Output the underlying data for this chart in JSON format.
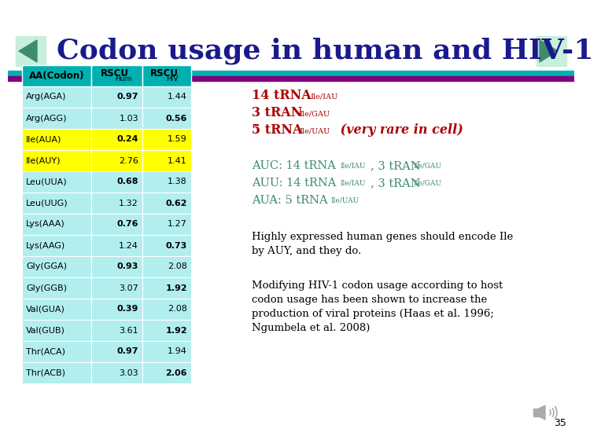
{
  "title": "Codon usage in human and HIV-1",
  "title_color": "#1a1a8c",
  "bg_color": "#ffffff",
  "header_bg": "#00b0b0",
  "row_bg_default": "#b2eeee",
  "row_bg_highlight": "#ffff00",
  "rows": [
    {
      "label": "Arg(AGA)",
      "hum": "0.97",
      "hiv": "1.44",
      "highlight": false,
      "hum_bold": true,
      "hiv_bold": false
    },
    {
      "label": "Arg(AGG)",
      "hum": "1.03",
      "hiv": "0.56",
      "highlight": false,
      "hum_bold": false,
      "hiv_bold": true
    },
    {
      "label": "Ile(AUA)",
      "hum": "0.24",
      "hiv": "1.59",
      "highlight": true,
      "hum_bold": true,
      "hiv_bold": false
    },
    {
      "label": "Ile(AUY)",
      "hum": "2.76",
      "hiv": "1.41",
      "highlight": true,
      "hum_bold": false,
      "hiv_bold": false
    },
    {
      "label": "Leu(UUA)",
      "hum": "0.68",
      "hiv": "1.38",
      "highlight": false,
      "hum_bold": true,
      "hiv_bold": false
    },
    {
      "label": "Leu(UUG)",
      "hum": "1.32",
      "hiv": "0.62",
      "highlight": false,
      "hum_bold": false,
      "hiv_bold": true
    },
    {
      "label": "Lys(AAA)",
      "hum": "0.76",
      "hiv": "1.27",
      "highlight": false,
      "hum_bold": true,
      "hiv_bold": false
    },
    {
      "label": "Lys(AAG)",
      "hum": "1.24",
      "hiv": "0.73",
      "highlight": false,
      "hum_bold": false,
      "hiv_bold": true
    },
    {
      "label": "Gly(GGA)",
      "hum": "0.93",
      "hiv": "2.08",
      "highlight": false,
      "hum_bold": true,
      "hiv_bold": false
    },
    {
      "label": "Gly(GGB)",
      "hum": "3.07",
      "hiv": "1.92",
      "highlight": false,
      "hum_bold": false,
      "hiv_bold": true
    },
    {
      "label": "Val(GUA)",
      "hum": "0.39",
      "hiv": "2.08",
      "highlight": false,
      "hum_bold": true,
      "hiv_bold": false
    },
    {
      "label": "Val(GUB)",
      "hum": "3.61",
      "hiv": "1.92",
      "highlight": false,
      "hum_bold": false,
      "hiv_bold": true
    },
    {
      "label": "Thr(ACA)",
      "hum": "0.97",
      "hiv": "1.94",
      "highlight": false,
      "hum_bold": true,
      "hiv_bold": false
    },
    {
      "label": "Thr(ACB)",
      "hum": "3.03",
      "hiv": "2.06",
      "highlight": false,
      "hum_bold": false,
      "hiv_bold": true
    }
  ],
  "teal_bar_color": "#00b0b0",
  "purple_bar_color": "#800080",
  "nav_color": "#3d8c6e",
  "red_color": "#aa0000",
  "teal_text_color": "#3d8c6e",
  "black_color": "#000000",
  "slide_number": "35"
}
